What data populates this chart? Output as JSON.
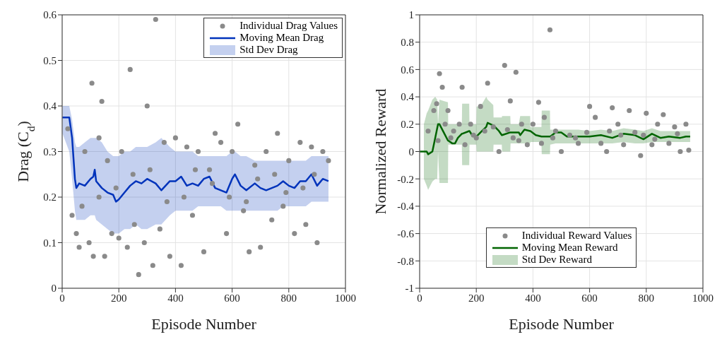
{
  "chart_data": [
    {
      "type": "line",
      "xlabel": "Episode Number",
      "ylabel": "Drag (C$_{d}$)",
      "annotations": [
        "Std Dev Drag"
      ],
      "xlim": [
        0,
        1000
      ],
      "ylim": [
        0,
        0.6
      ],
      "xticks": [
        0,
        200,
        400,
        600,
        800,
        1000
      ],
      "yticks": [
        0,
        0.1,
        0.2,
        0.3,
        0.4,
        0.5,
        0.6
      ],
      "grid": true,
      "legend": "top right",
      "series": [
        {
          "type": "scatter",
          "name": "Individual Drag Values",
          "color": "#8a8a8a",
          "x": [
            20,
            35,
            50,
            60,
            80,
            95,
            105,
            110,
            130,
            140,
            150,
            160,
            175,
            200,
            210,
            230,
            240,
            255,
            270,
            290,
            300,
            320,
            330,
            345,
            360,
            380,
            400,
            420,
            440,
            460,
            480,
            500,
            520,
            540,
            560,
            580,
            600,
            620,
            640,
            660,
            680,
            700,
            720,
            740,
            760,
            780,
            800,
            820,
            840,
            860,
            880,
            900,
            920,
            940,
            130,
            250,
            370,
            470,
            590,
            690,
            790,
            890,
            70,
            190,
            310,
            430,
            530,
            650,
            750,
            850
          ],
          "values": [
            0.35,
            0.16,
            0.12,
            0.09,
            0.3,
            0.1,
            0.45,
            0.07,
            0.33,
            0.41,
            0.07,
            0.28,
            0.12,
            0.11,
            0.3,
            0.09,
            0.48,
            0.14,
            0.03,
            0.1,
            0.4,
            0.05,
            0.59,
            0.13,
            0.32,
            0.07,
            0.33,
            0.05,
            0.31,
            0.16,
            0.3,
            0.08,
            0.26,
            0.34,
            0.32,
            0.12,
            0.3,
            0.36,
            0.17,
            0.08,
            0.27,
            0.09,
            0.3,
            0.15,
            0.34,
            0.18,
            0.28,
            0.12,
            0.32,
            0.14,
            0.31,
            0.1,
            0.3,
            0.28,
            0.2,
            0.25,
            0.19,
            0.26,
            0.2,
            0.24,
            0.21,
            0.25,
            0.18,
            0.22,
            0.26,
            0.2,
            0.23,
            0.19,
            0.25,
            0.22
          ]
        },
        {
          "type": "line",
          "name": "Moving Mean Drag",
          "color": "#0033bb",
          "x": [
            1,
            25,
            35,
            45,
            50,
            60,
            80,
            100,
            110,
            115,
            120,
            140,
            160,
            180,
            190,
            200,
            220,
            240,
            260,
            280,
            300,
            330,
            350,
            380,
            400,
            420,
            440,
            460,
            480,
            500,
            520,
            540,
            560,
            580,
            600,
            610,
            630,
            650,
            680,
            700,
            720,
            740,
            760,
            780,
            800,
            820,
            840,
            860,
            880,
            900,
            920,
            940
          ],
          "values": [
            0.375,
            0.375,
            0.33,
            0.24,
            0.22,
            0.23,
            0.225,
            0.24,
            0.245,
            0.26,
            0.235,
            0.22,
            0.21,
            0.205,
            0.19,
            0.195,
            0.21,
            0.225,
            0.235,
            0.23,
            0.24,
            0.23,
            0.215,
            0.235,
            0.235,
            0.245,
            0.225,
            0.23,
            0.225,
            0.24,
            0.245,
            0.22,
            0.215,
            0.21,
            0.24,
            0.25,
            0.225,
            0.215,
            0.23,
            0.22,
            0.215,
            0.22,
            0.225,
            0.235,
            0.225,
            0.22,
            0.235,
            0.235,
            0.25,
            0.225,
            0.24,
            0.235
          ],
          "lower": [
            0.34,
            0.3,
            0.24,
            0.17,
            0.15,
            0.15,
            0.15,
            0.16,
            0.16,
            0.16,
            0.15,
            0.14,
            0.13,
            0.12,
            0.12,
            0.12,
            0.13,
            0.13,
            0.14,
            0.13,
            0.13,
            0.14,
            0.14,
            0.16,
            0.17,
            0.17,
            0.17,
            0.17,
            0.18,
            0.18,
            0.18,
            0.18,
            0.18,
            0.17,
            0.17,
            0.17,
            0.17,
            0.17,
            0.17,
            0.17,
            0.17,
            0.17,
            0.17,
            0.18,
            0.18,
            0.18,
            0.18,
            0.18,
            0.19,
            0.19,
            0.19,
            0.19
          ],
          "upper": [
            0.4,
            0.4,
            0.37,
            0.32,
            0.31,
            0.31,
            0.32,
            0.33,
            0.33,
            0.33,
            0.33,
            0.32,
            0.3,
            0.29,
            0.29,
            0.29,
            0.3,
            0.3,
            0.31,
            0.31,
            0.31,
            0.32,
            0.33,
            0.31,
            0.3,
            0.3,
            0.3,
            0.3,
            0.29,
            0.29,
            0.29,
            0.29,
            0.29,
            0.29,
            0.3,
            0.3,
            0.29,
            0.29,
            0.28,
            0.28,
            0.28,
            0.28,
            0.28,
            0.28,
            0.28,
            0.28,
            0.28,
            0.28,
            0.29,
            0.29,
            0.29,
            0.29
          ]
        }
      ]
    },
    {
      "type": "line",
      "xlabel": "Episode Number",
      "ylabel": "Normalized Reward",
      "annotations": [
        "Std Dev Reward"
      ],
      "xlim": [
        0,
        1000
      ],
      "ylim": [
        -1,
        1
      ],
      "xticks": [
        0,
        200,
        400,
        600,
        800,
        1000
      ],
      "yticks": [
        -1,
        -0.8,
        -0.6,
        -0.4,
        -0.2,
        0,
        0.2,
        0.4,
        0.6,
        0.8,
        1
      ],
      "grid": true,
      "legend": "bottom",
      "series": [
        {
          "type": "scatter",
          "name": "Individual Reward Values",
          "color": "#8a8a8a",
          "x": [
            30,
            50,
            60,
            70,
            80,
            90,
            100,
            120,
            140,
            150,
            160,
            180,
            200,
            215,
            240,
            260,
            280,
            300,
            320,
            330,
            340,
            360,
            380,
            400,
            420,
            440,
            460,
            480,
            500,
            530,
            560,
            600,
            620,
            640,
            660,
            680,
            700,
            720,
            740,
            760,
            780,
            800,
            820,
            840,
            860,
            880,
            900,
            920,
            940,
            950,
            110,
            230,
            350,
            470,
            590,
            710,
            830,
            910,
            65,
            190,
            310,
            430,
            550,
            670,
            790
          ],
          "values": [
            0.15,
            0.3,
            0.35,
            0.57,
            0.47,
            0.2,
            0.3,
            0.15,
            0.2,
            0.47,
            0.05,
            0.2,
            0.1,
            0.33,
            0.5,
            0.18,
            0.0,
            0.63,
            0.37,
            0.1,
            0.58,
            0.2,
            0.05,
            0.2,
            0.36,
            0.25,
            0.89,
            0.15,
            0.0,
            0.12,
            0.06,
            0.33,
            0.25,
            0.06,
            0.0,
            0.32,
            0.2,
            0.05,
            0.3,
            0.14,
            -0.03,
            0.28,
            0.05,
            0.2,
            0.27,
            0.06,
            0.18,
            0.0,
            0.2,
            0.01,
            0.1,
            0.15,
            0.08,
            0.1,
            0.14,
            0.12,
            0.09,
            0.13,
            0.08,
            0.12,
            0.16,
            0.06,
            0.1,
            0.15,
            0.12
          ]
        },
        {
          "type": "line",
          "name": "Moving Mean Reward",
          "color": "#006400",
          "x": [
            1,
            15,
            25,
            30,
            45,
            55,
            62,
            65,
            70,
            85,
            100,
            101,
            115,
            125,
            135,
            149,
            150,
            175,
            176,
            185,
            200,
            201,
            215,
            235,
            240,
            260,
            261,
            280,
            290,
            291,
            320,
            321,
            350,
            355,
            370,
            390,
            391,
            410,
            430,
            431,
            460,
            461,
            480,
            500,
            520,
            560,
            600,
            640,
            680,
            720,
            760,
            790,
            820,
            850,
            880,
            920,
            940,
            955
          ],
          "values": [
            0,
            0,
            0,
            -0.02,
            0,
            0.1,
            0.17,
            0.2,
            0.2,
            0.14,
            0.08,
            0.08,
            0.06,
            0.06,
            0.1,
            0.13,
            0.13,
            0.15,
            0.15,
            0.12,
            0.11,
            0.11,
            0.14,
            0.18,
            0.21,
            0.19,
            0.19,
            0.15,
            0.12,
            0.12,
            0.14,
            0.14,
            0.14,
            0.12,
            0.16,
            0.15,
            0.15,
            0.12,
            0.11,
            0.11,
            0.11,
            0.11,
            0.14,
            0.14,
            0.11,
            0.11,
            0.11,
            0.12,
            0.1,
            0.13,
            0.12,
            0.09,
            0.13,
            0.1,
            0.11,
            0.1,
            0.11,
            0.11
          ],
          "lower": [
            null,
            -0.2,
            -0.25,
            -0.28,
            -0.22,
            -0.2,
            -0.2,
            0.0,
            -0.23,
            -0.23,
            -0.23,
            0.05,
            0.05,
            0.05,
            0.05,
            0.05,
            -0.1,
            -0.1,
            0.05,
            0.05,
            0.05,
            0.0,
            0.0,
            0.0,
            0.0,
            0.0,
            0.05,
            0.05,
            0.05,
            0.0,
            0.0,
            0.06,
            0.06,
            0.06,
            0.06,
            0.06,
            0.07,
            0.07,
            0.07,
            -0.02,
            -0.02,
            0.05,
            0.06,
            0.06,
            0.06,
            0.06,
            0.06,
            0.06,
            0.06,
            0.07,
            0.06,
            0.06,
            0.07,
            0.07,
            0.07,
            0.07,
            0.07,
            0.07
          ],
          "upper": [
            null,
            0.2,
            0.28,
            0.3,
            0.38,
            0.4,
            0.38,
            0.2,
            0.38,
            0.37,
            0.36,
            0.2,
            0.2,
            0.2,
            0.2,
            0.2,
            0.35,
            0.35,
            0.2,
            0.2,
            0.2,
            0.33,
            0.33,
            0.4,
            0.38,
            0.34,
            0.25,
            0.25,
            0.25,
            0.26,
            0.26,
            0.2,
            0.2,
            0.26,
            0.26,
            0.26,
            0.18,
            0.18,
            0.18,
            0.3,
            0.3,
            0.16,
            0.16,
            0.16,
            0.16,
            0.16,
            0.15,
            0.16,
            0.15,
            0.17,
            0.16,
            0.15,
            0.17,
            0.15,
            0.15,
            0.15,
            0.15,
            0.15
          ]
        }
      ]
    }
  ]
}
